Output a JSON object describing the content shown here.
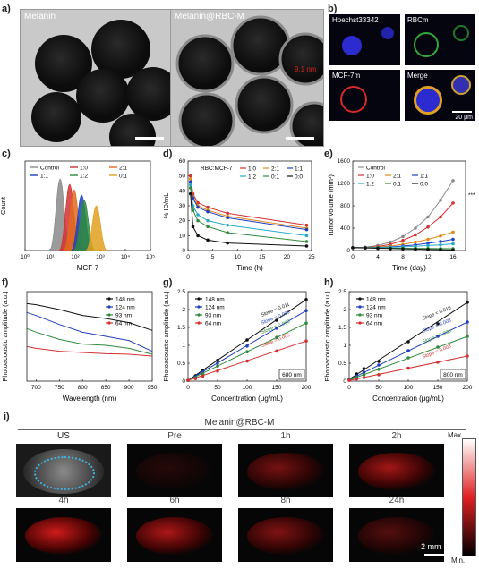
{
  "panels": {
    "a": {
      "label": "a)",
      "left_title": "Melanin",
      "right_title": "Melanin@RBC-M",
      "annotation": "9.1 nm"
    },
    "b": {
      "label": "b)",
      "tiles": [
        "Hoechst33342",
        "RBCm",
        "MCF-7m",
        "Merge"
      ],
      "scale": "20 μm"
    },
    "c": {
      "label": "c)",
      "ylabel": "Count",
      "xlabel": "MCF-7",
      "legend": [
        "Control",
        "1:0",
        "2:1",
        "1:1",
        "1:2",
        "0:1"
      ],
      "ticks": [
        "10⁰",
        "10¹",
        "10²",
        "10³",
        "10⁴",
        "10⁵"
      ]
    },
    "d": {
      "label": "d)",
      "ylabel": "% ID/mL",
      "xlabel": "Time (h)",
      "legend_title": "RBC:MCF-7",
      "legend": [
        "1:0",
        "2:1",
        "1:1",
        "1:2",
        "0:1",
        "0:0"
      ]
    },
    "e": {
      "label": "e)",
      "ylabel": "Tumor volume (mm³)",
      "xlabel": "Time (day)",
      "legend": [
        "Control",
        "1:0",
        "2:1",
        "1:1",
        "1:2",
        "0:1",
        "0:0"
      ],
      "sig": "***"
    },
    "f": {
      "label": "f)",
      "ylabel": "Photoacoustic amplitude (a.u.)",
      "xlabel": "Wavelength (nm)",
      "legend": [
        "148 nm",
        "124 nm",
        "93 nm",
        "64 nm"
      ]
    },
    "g": {
      "label": "g)",
      "ylabel": "Photoacoustic amplitude (a.u.)",
      "xlabel": "Concentration (μg/mL)",
      "legend": [
        "148 nm",
        "124 nm",
        "93 nm",
        "64 nm"
      ],
      "slopes": [
        "Slope = 0.011",
        "Slope = 0.009",
        "Slope = 0.008",
        "Slope = 0.005"
      ],
      "box": "680 nm"
    },
    "h": {
      "label": "h)",
      "ylabel": "Photoacoustic amplitude (a.u.)",
      "xlabel": "Concentration (μg/mL)",
      "legend": [
        "148 nm",
        "124 nm",
        "93 nm",
        "64 nm"
      ],
      "slopes": [
        "Slope = 0.010",
        "Slope = 0.008",
        "Slope = 0.006",
        "Slope = 0.003"
      ],
      "box": "800 nm"
    },
    "i": {
      "label": "i)",
      "title": "Melanin@RBC-M",
      "tiles": [
        "US",
        "Pre",
        "1h",
        "2h",
        "4h",
        "6h",
        "8h",
        "24h"
      ],
      "scale": "2 mm",
      "colorbar_max": "Max.",
      "colorbar_min": "Min."
    }
  },
  "colors": [
    "#111111",
    "#1f3fbf",
    "#2e8b3d",
    "#d43030",
    "#e08a1e",
    "#29a9c9",
    "#8a8a8a"
  ],
  "chart_data": [
    {
      "type": "line",
      "panel": "c",
      "note": "flow cytometry histograms",
      "series": [
        {
          "name": "Control",
          "peak": 25
        },
        {
          "name": "1:0",
          "peak": 60
        },
        {
          "name": "2:1",
          "peak": 90
        },
        {
          "name": "1:1",
          "peak": 180
        },
        {
          "name": "1:2",
          "peak": 230
        },
        {
          "name": "0:1",
          "peak": 700
        }
      ]
    },
    {
      "type": "line",
      "panel": "d",
      "x": [
        0.5,
        1,
        2,
        4,
        8,
        24
      ],
      "ylim": [
        0,
        60
      ],
      "xlim": [
        0,
        25
      ],
      "series": [
        {
          "name": "1:0",
          "values": [
            50,
            38,
            32,
            29,
            25,
            17
          ]
        },
        {
          "name": "2:1",
          "values": [
            48,
            36,
            30,
            27,
            23,
            15
          ]
        },
        {
          "name": "1:1",
          "values": [
            46,
            35,
            29,
            26,
            22,
            14
          ]
        },
        {
          "name": "1:2",
          "values": [
            44,
            30,
            24,
            20,
            17,
            10
          ]
        },
        {
          "name": "0:1",
          "values": [
            42,
            27,
            20,
            16,
            12,
            6
          ]
        },
        {
          "name": "0:0",
          "values": [
            38,
            16,
            10,
            7,
            5,
            3
          ]
        }
      ]
    },
    {
      "type": "line",
      "panel": "e",
      "x": [
        0,
        2,
        4,
        6,
        8,
        10,
        12,
        14,
        16
      ],
      "ylim": [
        0,
        1600
      ],
      "xlim": [
        0,
        18
      ],
      "series": [
        {
          "name": "Control",
          "values": [
            50,
            60,
            90,
            150,
            250,
            400,
            600,
            900,
            1250
          ]
        },
        {
          "name": "1:0",
          "values": [
            50,
            55,
            70,
            110,
            180,
            280,
            420,
            600,
            850
          ]
        },
        {
          "name": "2:1",
          "values": [
            50,
            52,
            60,
            80,
            110,
            150,
            200,
            260,
            330
          ]
        },
        {
          "name": "1:1",
          "values": [
            50,
            50,
            55,
            65,
            80,
            100,
            130,
            160,
            200
          ]
        },
        {
          "name": "1:2",
          "values": [
            50,
            50,
            52,
            58,
            65,
            75,
            90,
            100,
            120
          ]
        },
        {
          "name": "0:1",
          "values": [
            50,
            48,
            45,
            42,
            40,
            38,
            36,
            34,
            32
          ]
        },
        {
          "name": "0:0",
          "values": [
            50,
            45,
            40,
            35,
            30,
            25,
            20,
            15,
            10
          ]
        }
      ]
    },
    {
      "type": "line",
      "panel": "f",
      "x": [
        680,
        700,
        750,
        800,
        850,
        900,
        950
      ],
      "ylim": [
        0,
        1.5
      ],
      "xlim": [
        680,
        950
      ],
      "series": [
        {
          "name": "148 nm",
          "values": [
            1.3,
            1.28,
            1.2,
            1.1,
            1.05,
            0.98,
            0.85
          ]
        },
        {
          "name": "124 nm",
          "values": [
            1.15,
            1.1,
            0.95,
            0.82,
            0.75,
            0.68,
            0.5
          ]
        },
        {
          "name": "93 nm",
          "values": [
            0.88,
            0.82,
            0.7,
            0.62,
            0.6,
            0.55,
            0.45
          ]
        },
        {
          "name": "64 nm",
          "values": [
            0.58,
            0.55,
            0.5,
            0.48,
            0.46,
            0.45,
            0.42
          ]
        }
      ]
    },
    {
      "type": "scatter",
      "panel": "g",
      "x": [
        0,
        12.5,
        25,
        50,
        100,
        150,
        200
      ],
      "ylim": [
        0,
        2.5
      ],
      "xlim": [
        0,
        200
      ],
      "series": [
        {
          "name": "148 nm",
          "values": [
            0.02,
            0.15,
            0.3,
            0.58,
            1.15,
            1.7,
            2.28
          ]
        },
        {
          "name": "124 nm",
          "values": [
            0.02,
            0.12,
            0.25,
            0.5,
            0.98,
            1.48,
            1.97
          ]
        },
        {
          "name": "93 nm",
          "values": [
            0.02,
            0.1,
            0.2,
            0.42,
            0.82,
            1.22,
            1.62
          ]
        },
        {
          "name": "64 nm",
          "values": [
            0.02,
            0.07,
            0.14,
            0.28,
            0.56,
            0.84,
            1.12
          ]
        }
      ]
    },
    {
      "type": "scatter",
      "panel": "h",
      "x": [
        0,
        12.5,
        25,
        50,
        100,
        150,
        200
      ],
      "ylim": [
        0,
        2.5
      ],
      "xlim": [
        0,
        200
      ],
      "series": [
        {
          "name": "148 nm",
          "values": [
            0.05,
            0.2,
            0.35,
            0.55,
            1.1,
            1.6,
            2.2
          ]
        },
        {
          "name": "124 nm",
          "values": [
            0.04,
            0.14,
            0.25,
            0.45,
            0.85,
            1.25,
            1.65
          ]
        },
        {
          "name": "93 nm",
          "values": [
            0.03,
            0.1,
            0.18,
            0.33,
            0.65,
            0.95,
            1.25
          ]
        },
        {
          "name": "64 nm",
          "values": [
            0.02,
            0.06,
            0.1,
            0.18,
            0.36,
            0.53,
            0.7
          ]
        }
      ]
    }
  ]
}
